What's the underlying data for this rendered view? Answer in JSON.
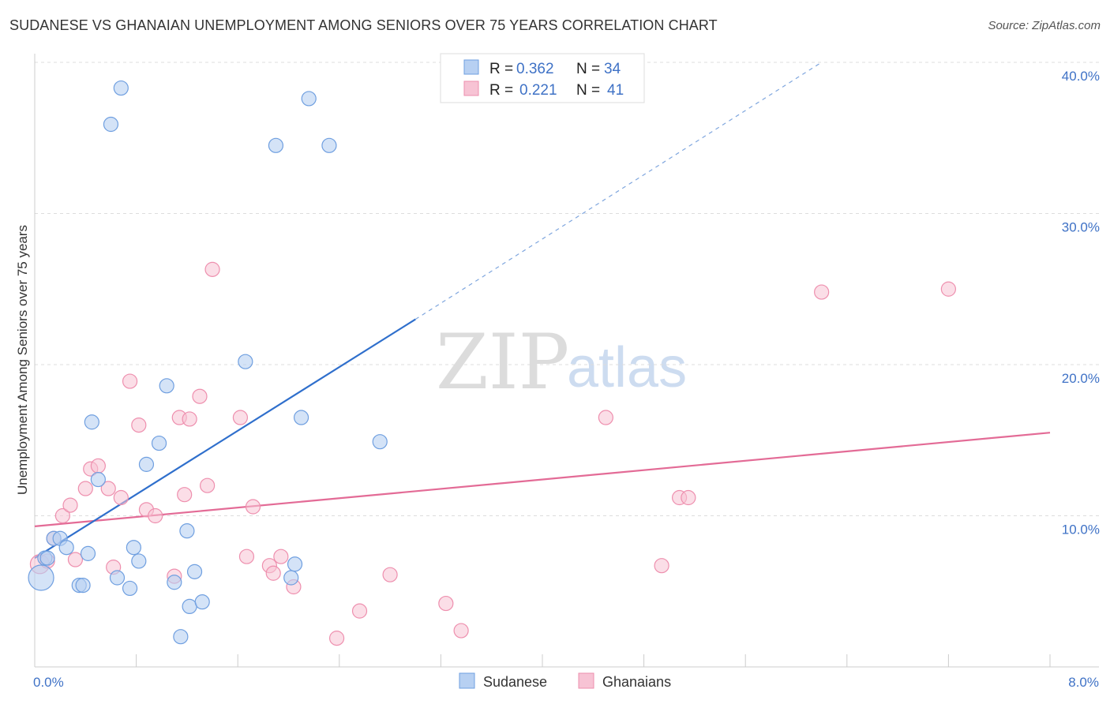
{
  "title": "SUDANESE VS GHANAIAN UNEMPLOYMENT AMONG SENIORS OVER 75 YEARS CORRELATION CHART",
  "source": "Source: ZipAtlas.com",
  "watermark": {
    "zip": "ZIP",
    "atlas": "atlas"
  },
  "colors": {
    "blue_fill": "#b7d0f2",
    "blue_stroke": "#6f9fe0",
    "blue_line": "#2f6fcc",
    "pink_fill": "#f7c3d4",
    "pink_stroke": "#ee8fae",
    "pink_line": "#e36b96",
    "tick_label": "#3f72c6"
  },
  "legend": {
    "rows": [
      {
        "r_label": "R = ",
        "r_value": "0.362",
        "n_label": "N = ",
        "n_value": "34"
      },
      {
        "r_label": "R = ",
        "r_value": "0.221",
        "n_label": "N = ",
        "n_value": "41"
      }
    ]
  },
  "bottom_legend": [
    "Sudanese",
    "Ghanaians"
  ],
  "chart_data": {
    "type": "scatter",
    "title": "SUDANESE VS GHANAIAN UNEMPLOYMENT AMONG SENIORS OVER 75 YEARS CORRELATION CHART",
    "xlabel": "",
    "ylabel": "Unemployment Among Seniors over 75 years",
    "xlim": [
      0,
      8
    ],
    "ylim": [
      0,
      40
    ],
    "x_tick_labels": [
      "0.0%",
      "8.0%"
    ],
    "y_ticks": [
      10,
      20,
      30,
      40
    ],
    "y_tick_labels": [
      "10.0%",
      "20.0%",
      "30.0%",
      "40.0%"
    ],
    "series": [
      {
        "name": "Sudanese",
        "color": "blue",
        "points": [
          [
            0.05,
            5.9
          ],
          [
            0.08,
            7.2
          ],
          [
            0.1,
            7.2
          ],
          [
            0.15,
            8.5
          ],
          [
            0.2,
            8.5
          ],
          [
            0.25,
            7.9
          ],
          [
            0.35,
            5.4
          ],
          [
            0.38,
            5.4
          ],
          [
            0.42,
            7.5
          ],
          [
            0.45,
            16.2
          ],
          [
            0.5,
            12.4
          ],
          [
            0.6,
            35.9
          ],
          [
            0.65,
            5.9
          ],
          [
            0.68,
            38.3
          ],
          [
            0.75,
            5.2
          ],
          [
            0.78,
            7.9
          ],
          [
            0.82,
            7.0
          ],
          [
            0.88,
            13.4
          ],
          [
            0.98,
            14.8
          ],
          [
            1.04,
            18.6
          ],
          [
            1.1,
            5.6
          ],
          [
            1.15,
            2.0
          ],
          [
            1.2,
            9.0
          ],
          [
            1.22,
            4.0
          ],
          [
            1.26,
            6.3
          ],
          [
            1.32,
            4.3
          ],
          [
            1.66,
            20.2
          ],
          [
            1.9,
            34.5
          ],
          [
            2.02,
            5.9
          ],
          [
            2.05,
            6.8
          ],
          [
            2.1,
            16.5
          ],
          [
            2.16,
            37.6
          ],
          [
            2.32,
            34.5
          ],
          [
            2.72,
            14.9
          ]
        ],
        "trend": {
          "x0": 0,
          "y0": 7.2,
          "x1": 3.0,
          "y1": 23.0,
          "dash_to_x": 6.2,
          "dash_to_y": 40.0
        }
      },
      {
        "name": "Ghanaians",
        "color": "pink",
        "points": [
          [
            0.04,
            6.8
          ],
          [
            0.1,
            7.0
          ],
          [
            0.15,
            8.5
          ],
          [
            0.22,
            10.0
          ],
          [
            0.28,
            10.7
          ],
          [
            0.32,
            7.1
          ],
          [
            0.4,
            11.8
          ],
          [
            0.44,
            13.1
          ],
          [
            0.5,
            13.3
          ],
          [
            0.58,
            11.8
          ],
          [
            0.62,
            6.6
          ],
          [
            0.68,
            11.2
          ],
          [
            0.75,
            18.9
          ],
          [
            0.82,
            16.0
          ],
          [
            0.88,
            10.4
          ],
          [
            0.95,
            10.0
          ],
          [
            1.1,
            6.0
          ],
          [
            1.14,
            16.5
          ],
          [
            1.18,
            11.4
          ],
          [
            1.22,
            16.4
          ],
          [
            1.3,
            17.9
          ],
          [
            1.36,
            12.0
          ],
          [
            1.4,
            26.3
          ],
          [
            1.62,
            16.5
          ],
          [
            1.67,
            7.3
          ],
          [
            1.72,
            10.6
          ],
          [
            1.85,
            6.7
          ],
          [
            1.88,
            6.2
          ],
          [
            1.94,
            7.3
          ],
          [
            2.04,
            5.3
          ],
          [
            2.38,
            1.9
          ],
          [
            2.56,
            3.7
          ],
          [
            2.8,
            6.1
          ],
          [
            3.24,
            4.2
          ],
          [
            3.36,
            2.4
          ],
          [
            4.5,
            16.5
          ],
          [
            4.94,
            6.7
          ],
          [
            5.08,
            11.2
          ],
          [
            5.15,
            11.2
          ],
          [
            6.2,
            24.8
          ],
          [
            7.2,
            25.0
          ]
        ],
        "trend": {
          "x0": 0,
          "y0": 9.3,
          "x1": 8.0,
          "y1": 15.5
        }
      }
    ]
  }
}
